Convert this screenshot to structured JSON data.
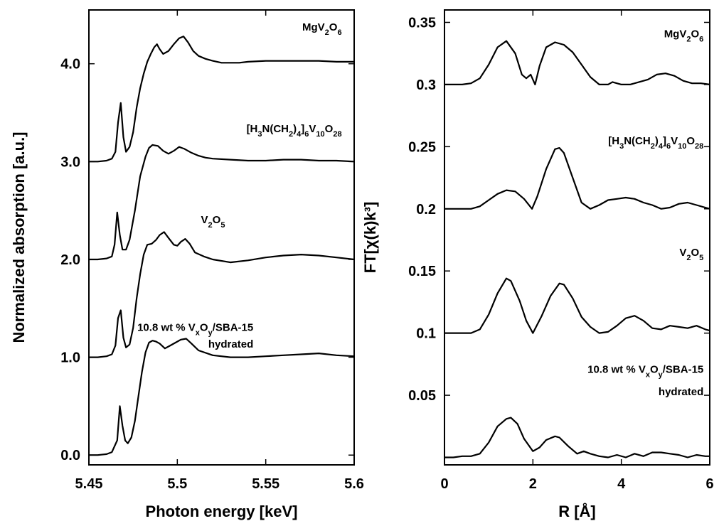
{
  "chart_data": [
    {
      "type": "line",
      "panel": "left",
      "xlabel": "Photon energy [keV]",
      "ylabel": "Normalized absorption [a.u.]",
      "xlim": [
        5.45,
        5.6
      ],
      "ylim": [
        -0.1,
        4.55
      ],
      "xticks": [
        5.45,
        5.5,
        5.55,
        5.6
      ],
      "xtick_labels": [
        "5.45",
        "5.5",
        "5.55",
        "5.6"
      ],
      "yticks": [
        0,
        1,
        2,
        3,
        4
      ],
      "ytick_labels": [
        "0.0",
        "1.0",
        "2.0",
        "3.0",
        "4.0"
      ],
      "annotations": [
        {
          "text": "MgV2O6",
          "parts": [
            {
              "t": "MgV"
            },
            {
              "t": "2",
              "sub": true
            },
            {
              "t": "O"
            },
            {
              "t": "6",
              "sub": true
            }
          ],
          "x": 5.593,
          "y": 4.34,
          "anchor": "end"
        },
        {
          "text": "[H3N(CH2)4]6V10O28",
          "parts": [
            {
              "t": "[H"
            },
            {
              "t": "3",
              "sub": true
            },
            {
              "t": "N(CH"
            },
            {
              "t": "2",
              "sub": true
            },
            {
              "t": ")"
            },
            {
              "t": "4",
              "sub": true
            },
            {
              "t": "]"
            },
            {
              "t": "6",
              "sub": true
            },
            {
              "t": "V"
            },
            {
              "t": "10",
              "sub": true
            },
            {
              "t": "O"
            },
            {
              "t": "28",
              "sub": true
            }
          ],
          "x": 5.593,
          "y": 3.3,
          "anchor": "end"
        },
        {
          "text": "V2O5",
          "parts": [
            {
              "t": "V"
            },
            {
              "t": "2",
              "sub": true
            },
            {
              "t": "O"
            },
            {
              "t": "5",
              "sub": true
            }
          ],
          "x": 5.527,
          "y": 2.37,
          "anchor": "end"
        },
        {
          "text": "10.8 wt % VxOy/SBA-15",
          "parts": [
            {
              "t": "10.8 wt % V"
            },
            {
              "t": "x",
              "sub": true
            },
            {
              "t": "O"
            },
            {
              "t": "y",
              "sub": true
            },
            {
              "t": "/SBA-15"
            }
          ],
          "x": 5.543,
          "y": 1.27,
          "anchor": "end"
        },
        {
          "text": "hydrated",
          "parts": [
            {
              "t": "hydrated"
            }
          ],
          "x": 5.543,
          "y": 1.1,
          "anchor": "end"
        }
      ],
      "series": [
        {
          "x": [
            5.45,
            5.455,
            5.46,
            5.463,
            5.465,
            5.4665,
            5.468,
            5.4695,
            5.471,
            5.473,
            5.475,
            5.477,
            5.479,
            5.481,
            5.483,
            5.485,
            5.487,
            5.4885,
            5.49,
            5.492,
            5.495,
            5.498,
            5.501,
            5.5035,
            5.506,
            5.509,
            5.512,
            5.516,
            5.52,
            5.525,
            5.53,
            5.535,
            5.54,
            5.55,
            5.56,
            5.57,
            5.58,
            5.59,
            5.6
          ],
          "y": [
            3.0,
            3.0,
            3.01,
            3.03,
            3.1,
            3.4,
            3.6,
            3.25,
            3.1,
            3.15,
            3.3,
            3.55,
            3.75,
            3.9,
            4.02,
            4.1,
            4.17,
            4.2,
            4.15,
            4.1,
            4.13,
            4.2,
            4.26,
            4.28,
            4.22,
            4.13,
            4.08,
            4.05,
            4.03,
            4.01,
            4.01,
            4.01,
            4.02,
            4.03,
            4.03,
            4.03,
            4.03,
            4.02,
            4.02
          ]
        },
        {
          "x": [
            5.45,
            5.455,
            5.46,
            5.463,
            5.4645,
            5.466,
            5.4675,
            5.469,
            5.471,
            5.473,
            5.476,
            5.479,
            5.482,
            5.484,
            5.486,
            5.489,
            5.492,
            5.495,
            5.498,
            5.501,
            5.504,
            5.508,
            5.512,
            5.516,
            5.52,
            5.53,
            5.54,
            5.55,
            5.56,
            5.57,
            5.58,
            5.59,
            5.6
          ],
          "y": [
            2.0,
            2.0,
            2.01,
            2.03,
            2.15,
            2.48,
            2.25,
            2.1,
            2.1,
            2.2,
            2.5,
            2.85,
            3.05,
            3.14,
            3.17,
            3.16,
            3.11,
            3.08,
            3.11,
            3.15,
            3.13,
            3.09,
            3.06,
            3.04,
            3.03,
            3.02,
            3.01,
            3.01,
            3.02,
            3.02,
            3.01,
            3.01,
            3.0
          ]
        },
        {
          "x": [
            5.45,
            5.455,
            5.46,
            5.463,
            5.465,
            5.4665,
            5.468,
            5.4695,
            5.471,
            5.473,
            5.475,
            5.477,
            5.479,
            5.481,
            5.483,
            5.4855,
            5.488,
            5.49,
            5.4925,
            5.495,
            5.498,
            5.5,
            5.502,
            5.5045,
            5.507,
            5.51,
            5.515,
            5.52,
            5.53,
            5.54,
            5.55,
            5.56,
            5.57,
            5.58,
            5.59,
            5.6
          ],
          "y": [
            1.0,
            1.0,
            1.01,
            1.03,
            1.12,
            1.4,
            1.48,
            1.2,
            1.1,
            1.13,
            1.3,
            1.6,
            1.85,
            2.05,
            2.15,
            2.16,
            2.2,
            2.25,
            2.28,
            2.22,
            2.15,
            2.14,
            2.18,
            2.21,
            2.16,
            2.07,
            2.03,
            2.0,
            1.97,
            1.99,
            2.02,
            2.04,
            2.05,
            2.04,
            2.02,
            2.0
          ]
        },
        {
          "x": [
            5.45,
            5.455,
            5.46,
            5.463,
            5.466,
            5.4675,
            5.469,
            5.4705,
            5.472,
            5.474,
            5.476,
            5.478,
            5.48,
            5.482,
            5.484,
            5.486,
            5.488,
            5.49,
            5.493,
            5.496,
            5.499,
            5.502,
            5.505,
            5.508,
            5.512,
            5.52,
            5.53,
            5.54,
            5.55,
            5.56,
            5.57,
            5.58,
            5.59,
            5.6
          ],
          "y": [
            0.0,
            0.0,
            0.01,
            0.03,
            0.15,
            0.5,
            0.3,
            0.15,
            0.12,
            0.18,
            0.35,
            0.6,
            0.85,
            1.05,
            1.15,
            1.17,
            1.16,
            1.14,
            1.09,
            1.12,
            1.15,
            1.18,
            1.19,
            1.14,
            1.07,
            1.02,
            1.0,
            1.0,
            1.01,
            1.02,
            1.03,
            1.04,
            1.02,
            1.01
          ]
        }
      ]
    },
    {
      "type": "line",
      "panel": "right",
      "xlabel": "R [Å]",
      "ylabel": "FT[χ(k)k³]",
      "xlim": [
        0,
        6
      ],
      "ylim": [
        -0.006,
        0.36
      ],
      "xticks": [
        0,
        2,
        4,
        6
      ],
      "xtick_labels": [
        "0",
        "2",
        "4",
        "6"
      ],
      "yticks": [
        0.05,
        0.1,
        0.15,
        0.2,
        0.25,
        0.3,
        0.35
      ],
      "ytick_labels": [
        "0.05",
        "0.1",
        "0.15",
        "0.2",
        "0.25",
        "0.3",
        "0.35"
      ],
      "annotations": [
        {
          "text": "MgV2O6",
          "parts": [
            {
              "t": "MgV"
            },
            {
              "t": "2",
              "sub": true
            },
            {
              "t": "O"
            },
            {
              "t": "6",
              "sub": true
            }
          ],
          "x": 5.86,
          "y": 0.338,
          "anchor": "end"
        },
        {
          "text": "[H3N(CH2)4]6V10O28",
          "parts": [
            {
              "t": "[H"
            },
            {
              "t": "3",
              "sub": true
            },
            {
              "t": "N(CH"
            },
            {
              "t": "2",
              "sub": true
            },
            {
              "t": ")"
            },
            {
              "t": "4",
              "sub": true
            },
            {
              "t": "]"
            },
            {
              "t": "6",
              "sub": true
            },
            {
              "t": "V"
            },
            {
              "t": "10",
              "sub": true
            },
            {
              "t": "O"
            },
            {
              "t": "28",
              "sub": true
            }
          ],
          "x": 5.86,
          "y": 0.252,
          "anchor": "end"
        },
        {
          "text": "V2O5",
          "parts": [
            {
              "t": "V"
            },
            {
              "t": "2",
              "sub": true
            },
            {
              "t": "O"
            },
            {
              "t": "5",
              "sub": true
            }
          ],
          "x": 5.86,
          "y": 0.162,
          "anchor": "end"
        },
        {
          "text": "10.8 wt % VxOy/SBA-15",
          "parts": [
            {
              "t": "10.8 wt % V"
            },
            {
              "t": "x",
              "sub": true
            },
            {
              "t": "O"
            },
            {
              "t": "y",
              "sub": true
            },
            {
              "t": "/SBA-15"
            }
          ],
          "x": 5.86,
          "y": 0.068,
          "anchor": "end"
        },
        {
          "text": "hydrated",
          "parts": [
            {
              "t": "hydrated"
            }
          ],
          "x": 5.86,
          "y": 0.05,
          "anchor": "end"
        }
      ],
      "series": [
        {
          "x": [
            0,
            0.2,
            0.4,
            0.6,
            0.8,
            1.0,
            1.2,
            1.4,
            1.6,
            1.75,
            1.85,
            1.95,
            2.05,
            2.15,
            2.3,
            2.5,
            2.7,
            2.9,
            3.1,
            3.3,
            3.5,
            3.7,
            3.8,
            4.0,
            4.2,
            4.4,
            4.6,
            4.8,
            5.0,
            5.2,
            5.4,
            5.6,
            5.8,
            6.0
          ],
          "y": [
            0.3,
            0.3,
            0.3,
            0.301,
            0.305,
            0.316,
            0.33,
            0.335,
            0.325,
            0.308,
            0.305,
            0.308,
            0.3,
            0.315,
            0.33,
            0.334,
            0.332,
            0.326,
            0.316,
            0.306,
            0.3,
            0.3,
            0.302,
            0.3,
            0.3,
            0.302,
            0.304,
            0.308,
            0.309,
            0.307,
            0.303,
            0.301,
            0.301,
            0.3
          ]
        },
        {
          "x": [
            0,
            0.2,
            0.4,
            0.6,
            0.8,
            1.0,
            1.2,
            1.4,
            1.6,
            1.8,
            1.98,
            2.1,
            2.3,
            2.5,
            2.6,
            2.7,
            2.9,
            3.1,
            3.3,
            3.5,
            3.7,
            3.9,
            4.1,
            4.3,
            4.5,
            4.7,
            4.9,
            5.1,
            5.3,
            5.5,
            5.7,
            6.0
          ],
          "y": [
            0.2,
            0.2,
            0.2,
            0.2,
            0.202,
            0.207,
            0.212,
            0.215,
            0.214,
            0.208,
            0.2,
            0.21,
            0.232,
            0.248,
            0.249,
            0.245,
            0.225,
            0.205,
            0.2,
            0.203,
            0.207,
            0.208,
            0.209,
            0.208,
            0.205,
            0.203,
            0.2,
            0.201,
            0.204,
            0.205,
            0.203,
            0.2
          ]
        },
        {
          "x": [
            0,
            0.2,
            0.4,
            0.6,
            0.8,
            1.0,
            1.2,
            1.4,
            1.5,
            1.7,
            1.85,
            2.0,
            2.2,
            2.4,
            2.6,
            2.7,
            2.9,
            3.1,
            3.3,
            3.5,
            3.7,
            3.9,
            4.1,
            4.3,
            4.5,
            4.7,
            4.9,
            5.1,
            5.3,
            5.5,
            5.7,
            5.9,
            6.0
          ],
          "y": [
            0.1,
            0.1,
            0.1,
            0.1,
            0.103,
            0.115,
            0.132,
            0.144,
            0.142,
            0.126,
            0.11,
            0.1,
            0.114,
            0.13,
            0.14,
            0.139,
            0.128,
            0.113,
            0.105,
            0.1,
            0.101,
            0.106,
            0.112,
            0.114,
            0.11,
            0.104,
            0.103,
            0.106,
            0.105,
            0.104,
            0.106,
            0.103,
            0.102
          ]
        },
        {
          "x": [
            0,
            0.2,
            0.4,
            0.6,
            0.8,
            1.0,
            1.2,
            1.4,
            1.5,
            1.65,
            1.8,
            2.0,
            2.15,
            2.3,
            2.5,
            2.6,
            2.8,
            3.0,
            3.15,
            3.3,
            3.5,
            3.7,
            3.9,
            4.1,
            4.3,
            4.5,
            4.7,
            4.9,
            5.1,
            5.3,
            5.5,
            5.7,
            5.9,
            6.0
          ],
          "y": [
            0.0,
            0.0,
            0.001,
            0.001,
            0.003,
            0.012,
            0.025,
            0.031,
            0.032,
            0.027,
            0.015,
            0.005,
            0.008,
            0.014,
            0.017,
            0.016,
            0.009,
            0.003,
            0.005,
            0.003,
            0.001,
            0.0,
            0.002,
            0.0,
            0.003,
            0.001,
            0.004,
            0.004,
            0.003,
            0.002,
            0.0,
            0.002,
            0.001,
            0.001
          ]
        }
      ]
    }
  ]
}
